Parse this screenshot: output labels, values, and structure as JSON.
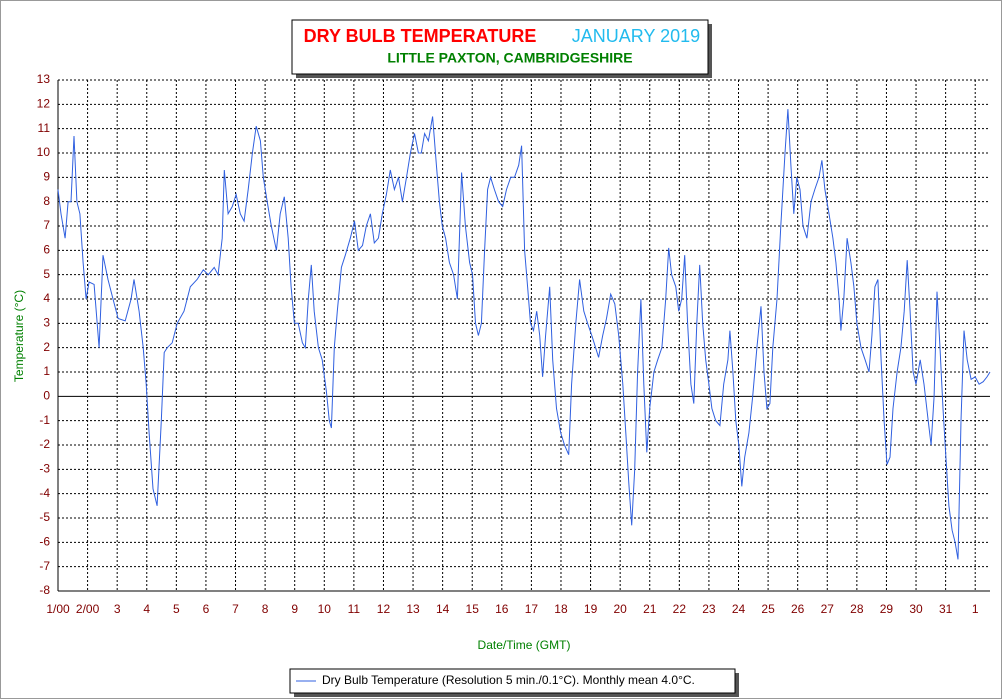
{
  "chart_data": {
    "type": "line",
    "title": "DRY BULB TEMPERATURE",
    "title_date": "JANUARY 2019",
    "subtitle": "LITTLE PAXTON, CAMBRIDGESHIRE",
    "xlabel": "Date/Time (GMT)",
    "ylabel": "Temperature (°C)",
    "xlim": [
      0,
      31.5
    ],
    "ylim": [
      -8,
      13
    ],
    "xticks": [
      {
        "value": 0,
        "label": "1/00"
      },
      {
        "value": 1,
        "label": "2/00"
      },
      {
        "value": 2,
        "label": "3"
      },
      {
        "value": 3,
        "label": "4"
      },
      {
        "value": 4,
        "label": "5"
      },
      {
        "value": 5,
        "label": "6"
      },
      {
        "value": 6,
        "label": "7"
      },
      {
        "value": 7,
        "label": "8"
      },
      {
        "value": 8,
        "label": "9"
      },
      {
        "value": 9,
        "label": "10"
      },
      {
        "value": 10,
        "label": "11"
      },
      {
        "value": 11,
        "label": "12"
      },
      {
        "value": 12,
        "label": "13"
      },
      {
        "value": 13,
        "label": "14"
      },
      {
        "value": 14,
        "label": "15"
      },
      {
        "value": 15,
        "label": "16"
      },
      {
        "value": 16,
        "label": "17"
      },
      {
        "value": 17,
        "label": "18"
      },
      {
        "value": 18,
        "label": "19"
      },
      {
        "value": 19,
        "label": "20"
      },
      {
        "value": 20,
        "label": "21"
      },
      {
        "value": 21,
        "label": "22"
      },
      {
        "value": 22,
        "label": "23"
      },
      {
        "value": 23,
        "label": "24"
      },
      {
        "value": 24,
        "label": "25"
      },
      {
        "value": 25,
        "label": "26"
      },
      {
        "value": 26,
        "label": "27"
      },
      {
        "value": 27,
        "label": "28"
      },
      {
        "value": 28,
        "label": "29"
      },
      {
        "value": 29,
        "label": "30"
      },
      {
        "value": 30,
        "label": "31"
      },
      {
        "value": 31,
        "label": "1"
      }
    ],
    "yticks": [
      -8,
      -7,
      -6,
      -5,
      -4,
      -3,
      -2,
      -1,
      0,
      1,
      2,
      3,
      4,
      5,
      6,
      7,
      8,
      9,
      10,
      11,
      12,
      13
    ],
    "grid": true,
    "x": [
      0,
      0.1,
      0.24,
      0.34,
      0.44,
      0.54,
      0.64,
      0.74,
      0.85,
      0.95,
      1.05,
      1.22,
      1.39,
      1.52,
      1.69,
      1.86,
      2.03,
      2.27,
      2.47,
      2.57,
      2.74,
      2.88,
      2.98,
      3.08,
      3.21,
      3.35,
      3.49,
      3.59,
      3.69,
      3.86,
      4.03,
      4.26,
      4.47,
      4.7,
      4.91,
      5.08,
      5.28,
      5.41,
      5.55,
      5.62,
      5.75,
      5.89,
      6.02,
      6.16,
      6.29,
      6.43,
      6.57,
      6.7,
      6.84,
      6.94,
      7.07,
      7.21,
      7.38,
      7.51,
      7.65,
      7.78,
      7.88,
      7.99,
      8.12,
      8.26,
      8.36,
      8.46,
      8.56,
      8.66,
      8.8,
      8.93,
      9.07,
      9.17,
      9.24,
      9.34,
      9.44,
      9.58,
      9.71,
      9.88,
      10.02,
      10.15,
      10.29,
      10.42,
      10.56,
      10.69,
      10.83,
      10.96,
      11.1,
      11.23,
      11.37,
      11.51,
      11.64,
      11.78,
      11.91,
      12.05,
      12.18,
      12.28,
      12.39,
      12.52,
      12.66,
      12.79,
      12.89,
      12.99,
      13.1,
      13.23,
      13.37,
      13.5,
      13.64,
      13.77,
      13.91,
      14.01,
      14.11,
      14.21,
      14.31,
      14.42,
      14.52,
      14.62,
      14.75,
      14.89,
      15.03,
      15.16,
      15.3,
      15.43,
      15.57,
      15.67,
      15.77,
      15.87,
      15.97,
      16.07,
      16.18,
      16.28,
      16.38,
      16.48,
      16.62,
      16.72,
      16.85,
      16.99,
      17.12,
      17.26,
      17.36,
      17.5,
      17.63,
      17.77,
      17.9,
      18.04,
      18.17,
      18.27,
      18.41,
      18.54,
      18.68,
      18.82,
      18.95,
      19.09,
      19.19,
      19.29,
      19.39,
      19.49,
      19.59,
      19.7,
      19.8,
      19.9,
      20.0,
      20.14,
      20.27,
      20.41,
      20.54,
      20.64,
      20.74,
      20.88,
      20.98,
      21.08,
      21.18,
      21.28,
      21.39,
      21.49,
      21.59,
      21.69,
      21.79,
      21.89,
      22.0,
      22.1,
      22.23,
      22.37,
      22.5,
      22.64,
      22.71,
      22.81,
      22.91,
      23.01,
      23.11,
      23.21,
      23.35,
      23.48,
      23.62,
      23.76,
      23.86,
      23.96,
      24.06,
      24.16,
      24.3,
      24.43,
      24.57,
      24.67,
      24.77,
      24.87,
      24.97,
      25.08,
      25.18,
      25.31,
      25.45,
      25.58,
      25.72,
      25.82,
      25.92,
      26.06,
      26.19,
      26.29,
      26.4,
      26.46,
      26.56,
      26.67,
      26.8,
      26.9,
      27.0,
      27.14,
      27.28,
      27.41,
      27.51,
      27.61,
      27.71,
      27.82,
      27.92,
      28.02,
      28.12,
      28.22,
      28.36,
      28.49,
      28.6,
      28.7,
      28.8,
      28.9,
      29.0,
      29.14,
      29.27,
      29.41,
      29.51,
      29.61,
      29.71,
      29.81,
      29.91,
      30.01,
      30.11,
      30.22,
      30.32,
      30.42,
      30.52,
      30.62,
      30.73,
      30.86,
      31.0,
      31.13,
      31.27,
      31.4,
      31.5
    ],
    "series": [
      {
        "name": "Dry Bulb Temperature (Resolution 5 min./0.1°C). Monthly mean 4.0°C.",
        "color": "#3060e0",
        "values": [
          8.5,
          7.5,
          6.5,
          8.0,
          8.0,
          10.7,
          8,
          7.5,
          5.5,
          4.0,
          4.7,
          4.6,
          2.0,
          5.8,
          4.8,
          4.0,
          3.2,
          3.1,
          4.0,
          4.8,
          3.5,
          2.0,
          0.5,
          -1.5,
          -3.8,
          -4.5,
          -1,
          1.8,
          2.0,
          2.2,
          3.0,
          3.5,
          4.5,
          4.8,
          5.2,
          5.0,
          5.3,
          5.0,
          6.5,
          9.3,
          7.5,
          7.8,
          8.3,
          7.5,
          7.2,
          8.5,
          10.0,
          11.1,
          10.5,
          9.0,
          8.0,
          7.0,
          6.0,
          7.5,
          8.2,
          6.5,
          4.5,
          3.0,
          3.0,
          2.2,
          2.0,
          4.0,
          5.4,
          3.5,
          2.0,
          1.5,
          0.2,
          -1.0,
          -1.3,
          2.0,
          3.5,
          5.3,
          5.8,
          6.5,
          7.2,
          6.0,
          6.2,
          7.0,
          7.5,
          6.3,
          6.5,
          7.5,
          8.3,
          9.3,
          8.5,
          9.0,
          8.0,
          9.0,
          10.0,
          10.8,
          10.0,
          10.0,
          10.8,
          10.5,
          11.5,
          9.5,
          8.0,
          7.0,
          6.5,
          5.5,
          5.0,
          4.0,
          9.2,
          7.0,
          5.5,
          5.0,
          3.0,
          2.5,
          3.0,
          6.0,
          8.5,
          9.0,
          8.5,
          8.0,
          7.8,
          8.5,
          9.0,
          9.0,
          9.5,
          10.3,
          6.0,
          4.5,
          3.0,
          2.7,
          3.5,
          2.5,
          0.8,
          2.5,
          4.5,
          1.5,
          -0.5,
          -1.5,
          -2.0,
          -2.4,
          0.5,
          3.0,
          4.8,
          3.5,
          3.0,
          2.5,
          2.0,
          1.6,
          2.5,
          3.2,
          4.2,
          3.8,
          2.5,
          0.5,
          -1.5,
          -3.5,
          -5.3,
          -3.0,
          1.0,
          4.0,
          0.5,
          -2.3,
          -0.5,
          1.0,
          1.5,
          2.0,
          4.0,
          6.1,
          5.0,
          4.5,
          3.5,
          4.0,
          5.8,
          3.0,
          0.5,
          -0.3,
          3.0,
          5.4,
          3.0,
          1.5,
          0.5,
          -0.5,
          -1.0,
          -1.2,
          0.5,
          1.5,
          2.7,
          1.0,
          -1.0,
          -2.0,
          -3.7,
          -2.5,
          -1.5,
          0.0,
          2.0,
          3.7,
          1.0,
          -0.5,
          -0.3,
          2.0,
          4.0,
          7.0,
          10.0,
          11.8,
          9.5,
          7.5,
          9.0,
          8.5,
          7.0,
          6.5,
          8.0,
          8.5,
          9.0,
          9.7,
          8.5,
          7.5,
          6.5,
          5.5,
          4.0,
          2.7,
          4.0,
          6.5,
          5.5,
          4.5,
          3.0,
          2.0,
          1.5,
          1.0,
          2.5,
          4.5,
          4.8,
          1.5,
          -1.0,
          -2.8,
          -2.5,
          -0.5,
          1.0,
          2.0,
          3.5,
          5.6,
          3.5,
          1.0,
          0.5,
          1.5,
          0.5,
          -1.0,
          -2.0,
          0.0,
          4.3,
          2.0,
          -0.5,
          -2.5,
          -4.5,
          -5.5,
          -6.0,
          -6.7,
          -1.0,
          2.7,
          1.5,
          0.7,
          0.8,
          0.5,
          0.6,
          0.8,
          1.0
        ]
      }
    ]
  }
}
